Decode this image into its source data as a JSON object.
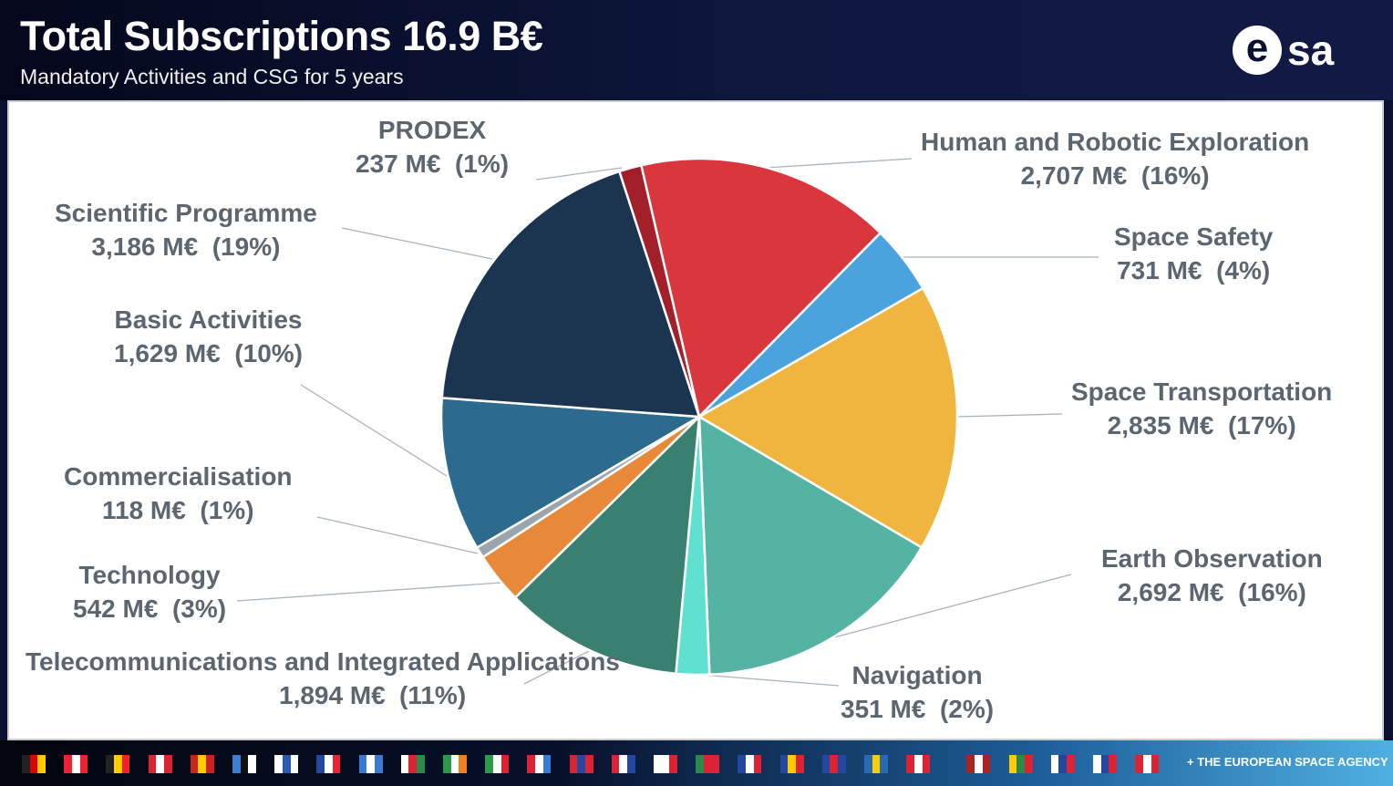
{
  "header": {
    "title": "Total Subscriptions 16.9 B€",
    "subtitle": "Mandatory Activities and CSG for 5 years",
    "logo": "esa"
  },
  "footer": {
    "agency": "+ THE EUROPEAN SPACE AGENCY",
    "flags": [
      [
        "#222",
        "#d00",
        "#fc0"
      ],
      [
        "#e23",
        "#fff",
        "#e23"
      ],
      [
        "#222",
        "#fc0",
        "#e23"
      ],
      [
        "#d23",
        "#fff",
        "#d23"
      ],
      [
        "#c22",
        "#fc0",
        "#c22"
      ],
      [
        "#3a7fd5",
        "#111",
        "#fff"
      ],
      [
        "#fff",
        "#2a5ab0",
        "#fff"
      ],
      [
        "#2448a0",
        "#fff",
        "#e23"
      ],
      [
        "#3a7ad0",
        "#fff",
        "#3a7ad0"
      ],
      [
        "#fff",
        "#d23",
        "#2a8a4a"
      ],
      [
        "#2a9a4a",
        "#fff",
        "#f08020"
      ],
      [
        "#2a9a4a",
        "#fff",
        "#d23"
      ],
      [
        "#d23",
        "#fff",
        "#3a7ad0"
      ],
      [
        "#d23",
        "#2448a0",
        "#d23"
      ],
      [
        "#d23",
        "#fff",
        "#2448a0"
      ],
      [
        "#fff",
        "#fff",
        "#d23"
      ],
      [
        "#2a8a4a",
        "#d23",
        "#d23"
      ],
      [
        "#2448a0",
        "#fff",
        "#d23"
      ],
      [
        "#2448a0",
        "#fc0",
        "#d23"
      ],
      [
        "#2448a0",
        "#d23",
        "#2448a0"
      ],
      [
        "#2a6ab0",
        "#fc0",
        "#2a6ab0"
      ],
      [
        "#d23",
        "#fff",
        "#d23"
      ],
      [
        "#a22",
        "#fff",
        "#a22"
      ],
      [
        "#fc0",
        "#2a8a4a",
        "#d23"
      ],
      [
        "#fff",
        "#2448a0",
        "#d23"
      ],
      [
        "#fff",
        "#2448a0",
        "#d23"
      ],
      [
        "#d23",
        "#fff",
        "#d23"
      ]
    ]
  },
  "chart_data": {
    "type": "pie",
    "title": "Total Subscriptions 16.9 B€",
    "unit": "M€",
    "slices": [
      {
        "name": "Human and Robotic Exploration",
        "value": 2707,
        "value_label": "2,707 M€",
        "pct": "(16%)",
        "color": "#d9363e"
      },
      {
        "name": "Space Safety",
        "value": 731,
        "value_label": "731 M€",
        "pct": "(4%)",
        "color": "#4aa3dc"
      },
      {
        "name": "Space Transportation",
        "value": 2835,
        "value_label": "2,835 M€",
        "pct": "(17%)",
        "color": "#efb53f"
      },
      {
        "name": "Earth Observation",
        "value": 2692,
        "value_label": "2,692 M€",
        "pct": "(16%)",
        "color": "#55b3a3"
      },
      {
        "name": "Navigation",
        "value": 351,
        "value_label": "351 M€",
        "pct": "(2%)",
        "color": "#5fe0d0"
      },
      {
        "name": "Telecommunications and Integrated Applications",
        "value": 1894,
        "value_label": "1,894 M€",
        "pct": "(11%)",
        "color": "#3a8070"
      },
      {
        "name": "Technology",
        "value": 542,
        "value_label": "542 M€",
        "pct": "(3%)",
        "color": "#e8893a"
      },
      {
        "name": "Commercialisation",
        "value": 118,
        "value_label": "118 M€",
        "pct": "(1%)",
        "color": "#9aa5ad"
      },
      {
        "name": "Basic Activities",
        "value": 1629,
        "value_label": "1,629 M€",
        "pct": "(10%)",
        "color": "#2c6a8e"
      },
      {
        "name": "Scientific Programme",
        "value": 3186,
        "value_label": "3,186 M€",
        "pct": "(19%)",
        "color": "#1b3550"
      },
      {
        "name": "PRODEX",
        "value": 237,
        "value_label": "237 M€",
        "pct": "(1%)",
        "color": "#a3202a"
      }
    ]
  }
}
